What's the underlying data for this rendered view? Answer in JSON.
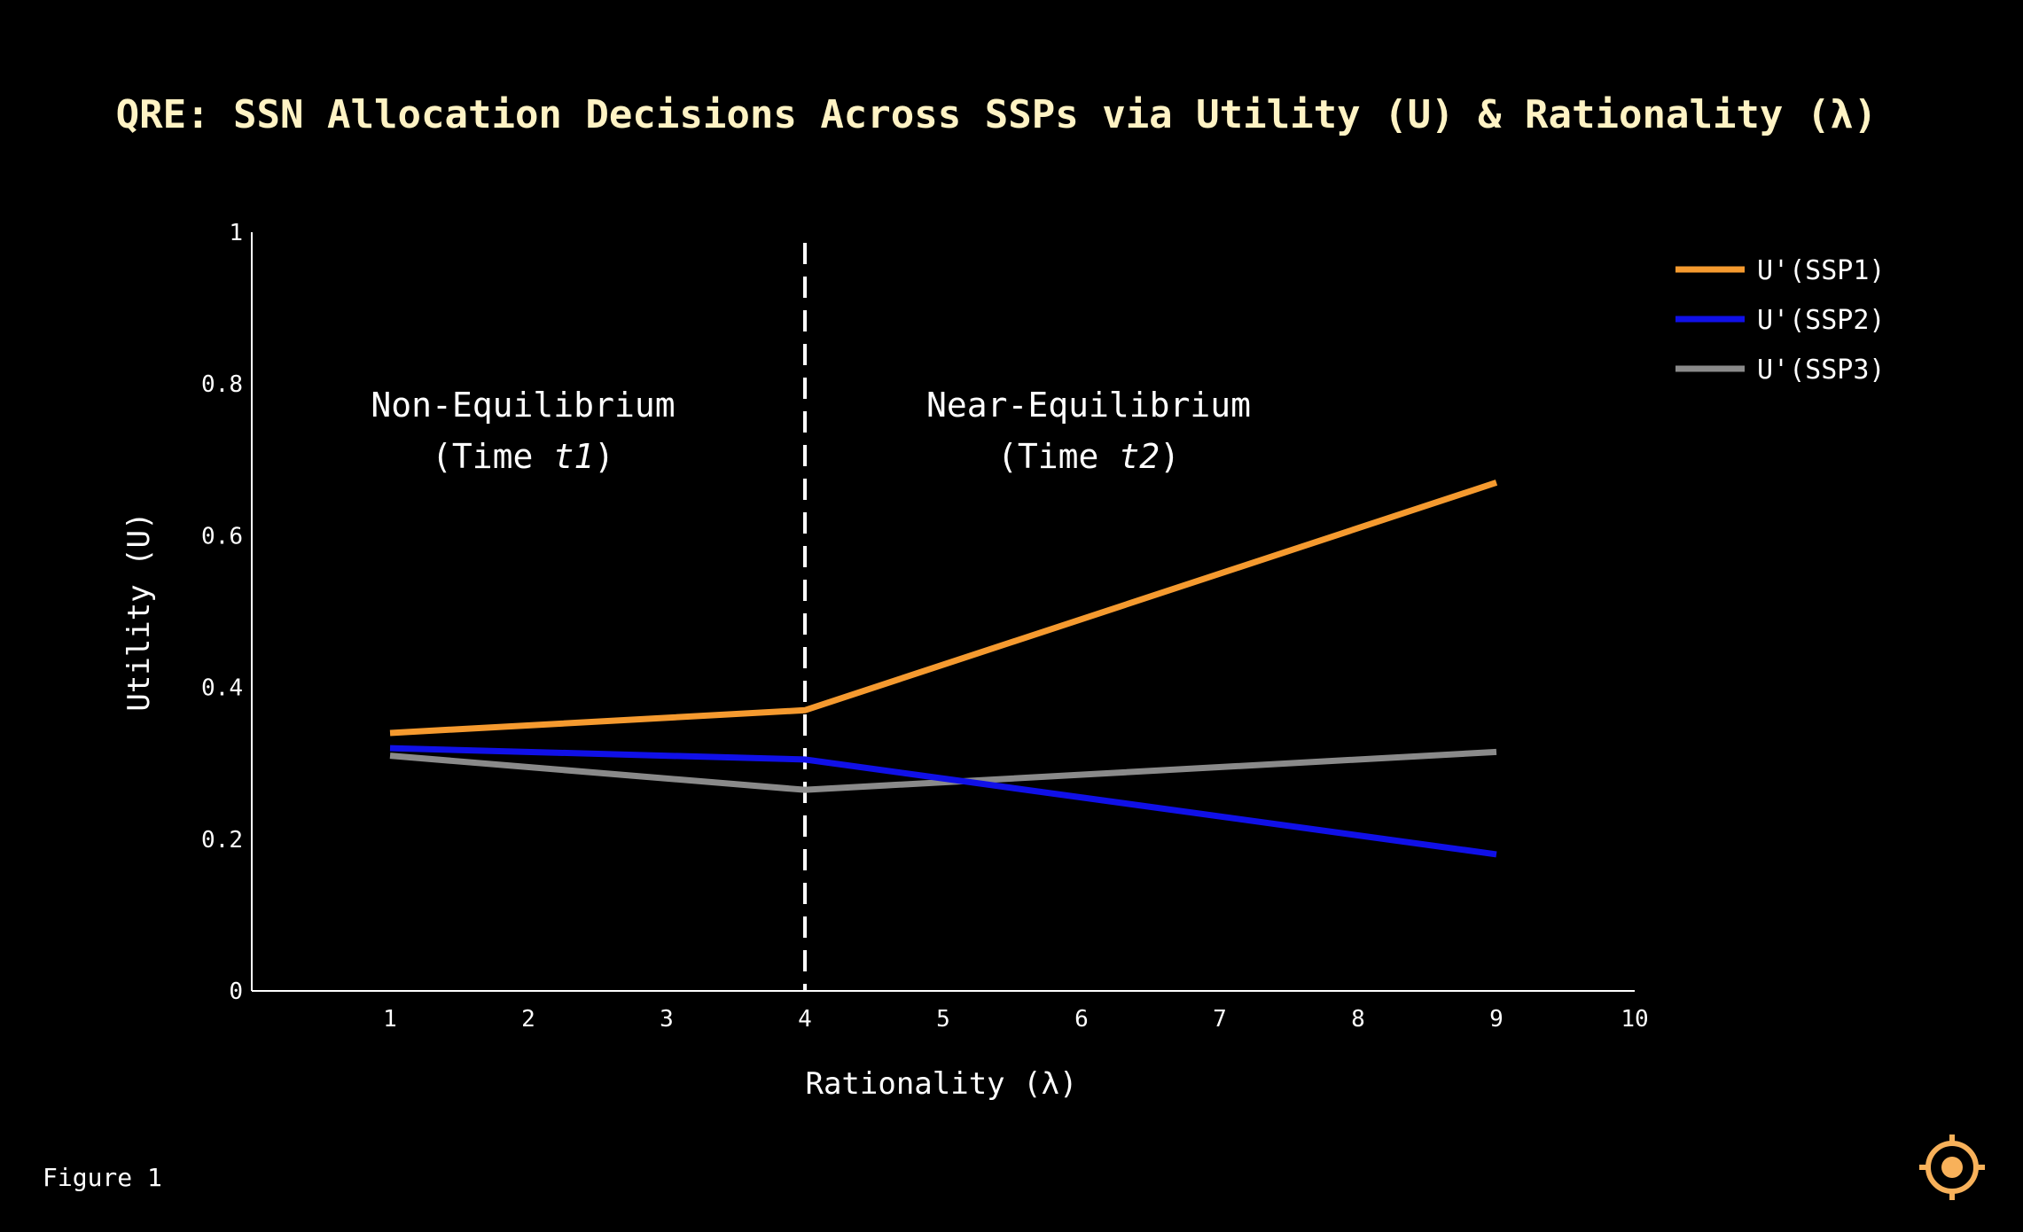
{
  "chart_data": {
    "type": "line",
    "title": "QRE: SSN Allocation Decisions Across SSPs via Utility (U) & Rationality (λ)",
    "xlabel": "Rationality (λ)",
    "ylabel": "Utility (U)",
    "xlim": [
      0,
      10
    ],
    "ylim": [
      0,
      1
    ],
    "x_ticks": [
      "1",
      "2",
      "3",
      "4",
      "5",
      "6",
      "7",
      "8",
      "9",
      "10"
    ],
    "y_ticks": [
      "0",
      "0.2",
      "0.4",
      "0.6",
      "0.8",
      "1"
    ],
    "grid": false,
    "legend_position": "top-right",
    "divider": {
      "x": 4,
      "style": "dashed"
    },
    "regions": [
      {
        "line1": "Non-Equilibrium",
        "prefix": "(Time ",
        "time": "t1",
        "suffix": ")"
      },
      {
        "line1": "Near-Equilibrium",
        "prefix": "(Time ",
        "time": "t2",
        "suffix": ")"
      }
    ],
    "series": [
      {
        "name": "U'(SSP1)",
        "color": "#F59A2F",
        "x": [
          1,
          4,
          9
        ],
        "y": [
          0.34,
          0.37,
          0.67
        ]
      },
      {
        "name": "U'(SSP2)",
        "color": "#1010E8",
        "x": [
          1,
          4,
          9
        ],
        "y": [
          0.32,
          0.305,
          0.18
        ]
      },
      {
        "name": "U'(SSP3)",
        "color": "#8A8A8A",
        "x": [
          1,
          4,
          9
        ],
        "y": [
          0.31,
          0.265,
          0.315
        ]
      }
    ]
  },
  "footer": {
    "figure_label": "Figure 1",
    "logo_icon": "target-icon",
    "logo_color": "#F8B15A"
  }
}
